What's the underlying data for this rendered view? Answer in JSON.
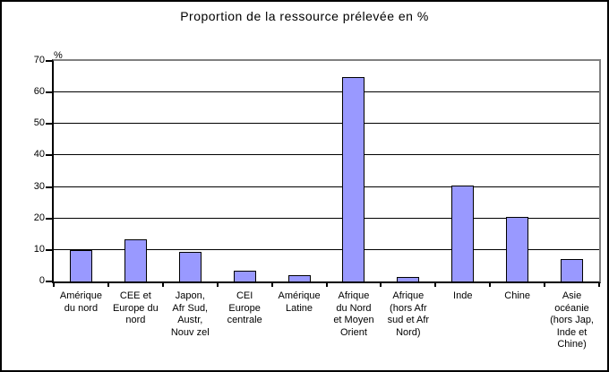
{
  "window": {
    "background": "#FFFFFF",
    "border_color": "#000000"
  },
  "chart_data": {
    "type": "bar",
    "title": "Proportion de la ressource prélevée en %",
    "ylabel": "%",
    "xlabel": "",
    "ylim": [
      0,
      70
    ],
    "y_ticks": [
      0,
      10,
      20,
      30,
      40,
      50,
      60,
      70
    ],
    "grid": true,
    "legend_position": "none",
    "categories": [
      "Amérique\ndu nord",
      "CEE et\nEurope du\nnord",
      "Japon,\nAfr Sud,\nAustr,\nNouv zel",
      "CEI\nEurope\ncentrale",
      "Amérique\nLatine",
      "Afrique\ndu Nord\net Moyen\nOrient",
      "Afrique\n(hors Afr\nsud et Afr\nNord)",
      "Inde",
      "Chine",
      "Asie\nocéanie\n(hors Jap,\nInde et\nChine)"
    ],
    "values": [
      10,
      13.5,
      9.5,
      3.5,
      2,
      65,
      1.5,
      30.5,
      20.5,
      7
    ],
    "colors": {
      "bar_fill": "#9999FF",
      "bar_border": "#000000",
      "gridline": "#000000",
      "axis": "#000000",
      "plot_border": "#808080",
      "text": "#000000"
    }
  }
}
